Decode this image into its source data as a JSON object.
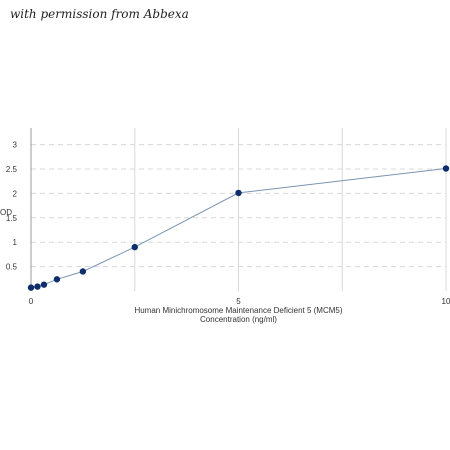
{
  "watermark": "with permission from Abbexa",
  "chart_data": {
    "type": "line",
    "title": "",
    "xlabel_lines": [
      "Human Minichromosome Maintenance Deficient 5 (MCM5)",
      "Concentration (ng/ml)"
    ],
    "ylabel": "OD",
    "xlim": [
      0,
      10
    ],
    "ylim": [
      0,
      3.3
    ],
    "x_ticks": [
      0,
      5,
      10
    ],
    "y_ticks": [
      0.5,
      1,
      1.5,
      2,
      2.5,
      3
    ],
    "x_tick_labels": [
      "0",
      "5",
      "10"
    ],
    "y_tick_labels": [
      "0.5",
      "1",
      "1.5",
      "2",
      "2.5",
      "3"
    ],
    "x_grid": [
      2.5,
      5,
      7.5,
      10
    ],
    "y_grid": [
      0.5,
      1,
      1.5,
      2,
      2.5,
      3
    ],
    "grid": true,
    "series": [
      {
        "x": [
          0,
          0.156,
          0.3125,
          0.625,
          1.25,
          2.5,
          5,
          10
        ],
        "y": [
          0.07,
          0.09,
          0.13,
          0.24,
          0.4,
          0.9,
          2.01,
          2.51
        ]
      }
    ],
    "line_color": "#7a94b2",
    "marker_color": "#0e2d6b",
    "grid_color": "#d8d8d8"
  }
}
